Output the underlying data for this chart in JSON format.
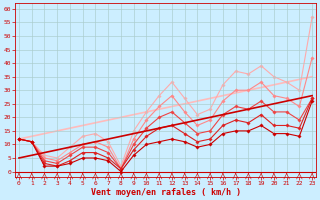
{
  "xlabel": "Vent moyen/en rafales ( km/h )",
  "background_color": "#cceeff",
  "grid_color": "#aacccc",
  "xlim": [
    -0.3,
    23.3
  ],
  "ylim": [
    -2,
    62
  ],
  "yticks": [
    0,
    5,
    10,
    15,
    20,
    25,
    30,
    35,
    40,
    45,
    50,
    55,
    60
  ],
  "xticks": [
    0,
    1,
    2,
    3,
    4,
    5,
    6,
    7,
    8,
    9,
    10,
    11,
    12,
    13,
    14,
    15,
    16,
    17,
    18,
    19,
    20,
    21,
    22,
    23
  ],
  "series": [
    {
      "x": [
        0,
        1,
        2,
        3,
        4,
        5,
        6,
        7,
        8,
        9,
        10,
        11,
        12,
        13,
        14,
        15,
        16,
        17,
        18,
        19,
        20,
        21,
        22,
        23
      ],
      "y": [
        12,
        11,
        2,
        2,
        3,
        5,
        5,
        4,
        0,
        6,
        10,
        11,
        12,
        11,
        9,
        10,
        14,
        15,
        15,
        17,
        14,
        14,
        13,
        26
      ],
      "color": "#cc0000",
      "marker": "D",
      "markersize": 1.8,
      "linewidth": 0.8,
      "zorder": 5
    },
    {
      "x": [
        0,
        1,
        2,
        3,
        4,
        5,
        6,
        7,
        8,
        9,
        10,
        11,
        12,
        13,
        14,
        15,
        16,
        17,
        18,
        19,
        20,
        21,
        22,
        23
      ],
      "y": [
        12,
        11,
        3,
        2,
        4,
        7,
        7,
        5,
        1,
        8,
        13,
        16,
        17,
        14,
        11,
        12,
        17,
        19,
        18,
        21,
        17,
        17,
        16,
        27
      ],
      "color": "#dd2222",
      "marker": "D",
      "markersize": 1.8,
      "linewidth": 0.8,
      "zorder": 4
    },
    {
      "x": [
        0,
        1,
        2,
        3,
        4,
        5,
        6,
        7,
        8,
        9,
        10,
        11,
        12,
        13,
        14,
        15,
        16,
        17,
        18,
        19,
        20,
        21,
        22,
        23
      ],
      "y": [
        12,
        11,
        4,
        3,
        6,
        9,
        9,
        7,
        1,
        10,
        16,
        20,
        22,
        18,
        14,
        15,
        21,
        24,
        23,
        26,
        22,
        22,
        19,
        27
      ],
      "color": "#ee4444",
      "marker": "D",
      "markersize": 1.8,
      "linewidth": 0.8,
      "zorder": 3
    },
    {
      "x": [
        0,
        1,
        2,
        3,
        4,
        5,
        6,
        7,
        8,
        9,
        10,
        11,
        12,
        13,
        14,
        15,
        16,
        17,
        18,
        19,
        20,
        21,
        22,
        23
      ],
      "y": [
        12,
        11,
        5,
        4,
        7,
        10,
        11,
        9,
        1,
        12,
        19,
        24,
        28,
        22,
        17,
        19,
        26,
        30,
        30,
        33,
        28,
        27,
        24,
        42
      ],
      "color": "#ff8888",
      "marker": "D",
      "markersize": 1.8,
      "linewidth": 0.8,
      "zorder": 2
    },
    {
      "x": [
        0,
        1,
        2,
        3,
        4,
        5,
        6,
        7,
        8,
        9,
        10,
        11,
        12,
        13,
        14,
        15,
        16,
        17,
        18,
        19,
        20,
        21,
        22,
        23
      ],
      "y": [
        12,
        11,
        6,
        5,
        9,
        13,
        14,
        11,
        2,
        15,
        22,
        28,
        33,
        27,
        21,
        23,
        32,
        37,
        36,
        39,
        35,
        33,
        30,
        57
      ],
      "color": "#ffaaaa",
      "marker": "D",
      "markersize": 1.8,
      "linewidth": 0.8,
      "zorder": 1
    },
    {
      "x": [
        0,
        23
      ],
      "y": [
        5,
        28
      ],
      "color": "#cc0000",
      "marker": null,
      "markersize": 0,
      "linewidth": 1.2,
      "zorder": 6
    },
    {
      "x": [
        0,
        23
      ],
      "y": [
        12,
        35
      ],
      "color": "#ffbbbb",
      "marker": null,
      "markersize": 0,
      "linewidth": 1.2,
      "zorder": 0
    }
  ]
}
